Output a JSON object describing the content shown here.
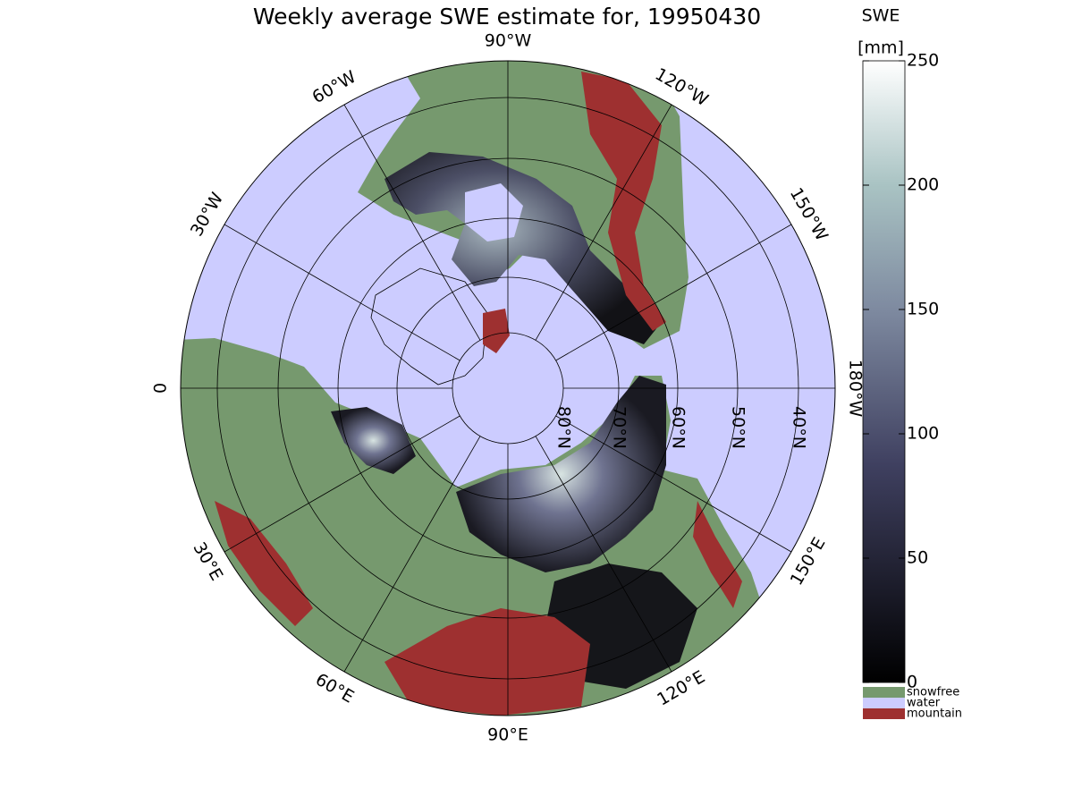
{
  "title": "Weekly average SWE estimate for, 19950430",
  "map": {
    "longitude_labels": [
      "90°W",
      "120°W",
      "150°W",
      "180°W",
      "150°E",
      "120°E",
      "90°E",
      "60°E",
      "30°E",
      "0",
      "30°W",
      "60°W"
    ],
    "latitude_labels": [
      "80°N",
      "70°N",
      "60°N",
      "50°N",
      "40°N"
    ]
  },
  "colorbar": {
    "title": "SWE",
    "unit": "[mm]",
    "range": [
      0,
      250
    ],
    "ticks": [
      0,
      50,
      100,
      150,
      200,
      250
    ],
    "legend": [
      {
        "label": "snowfree",
        "color": "#76996e"
      },
      {
        "label": "water",
        "color": "#ccccff"
      },
      {
        "label": "mountain",
        "color": "#9e3030"
      }
    ]
  }
}
